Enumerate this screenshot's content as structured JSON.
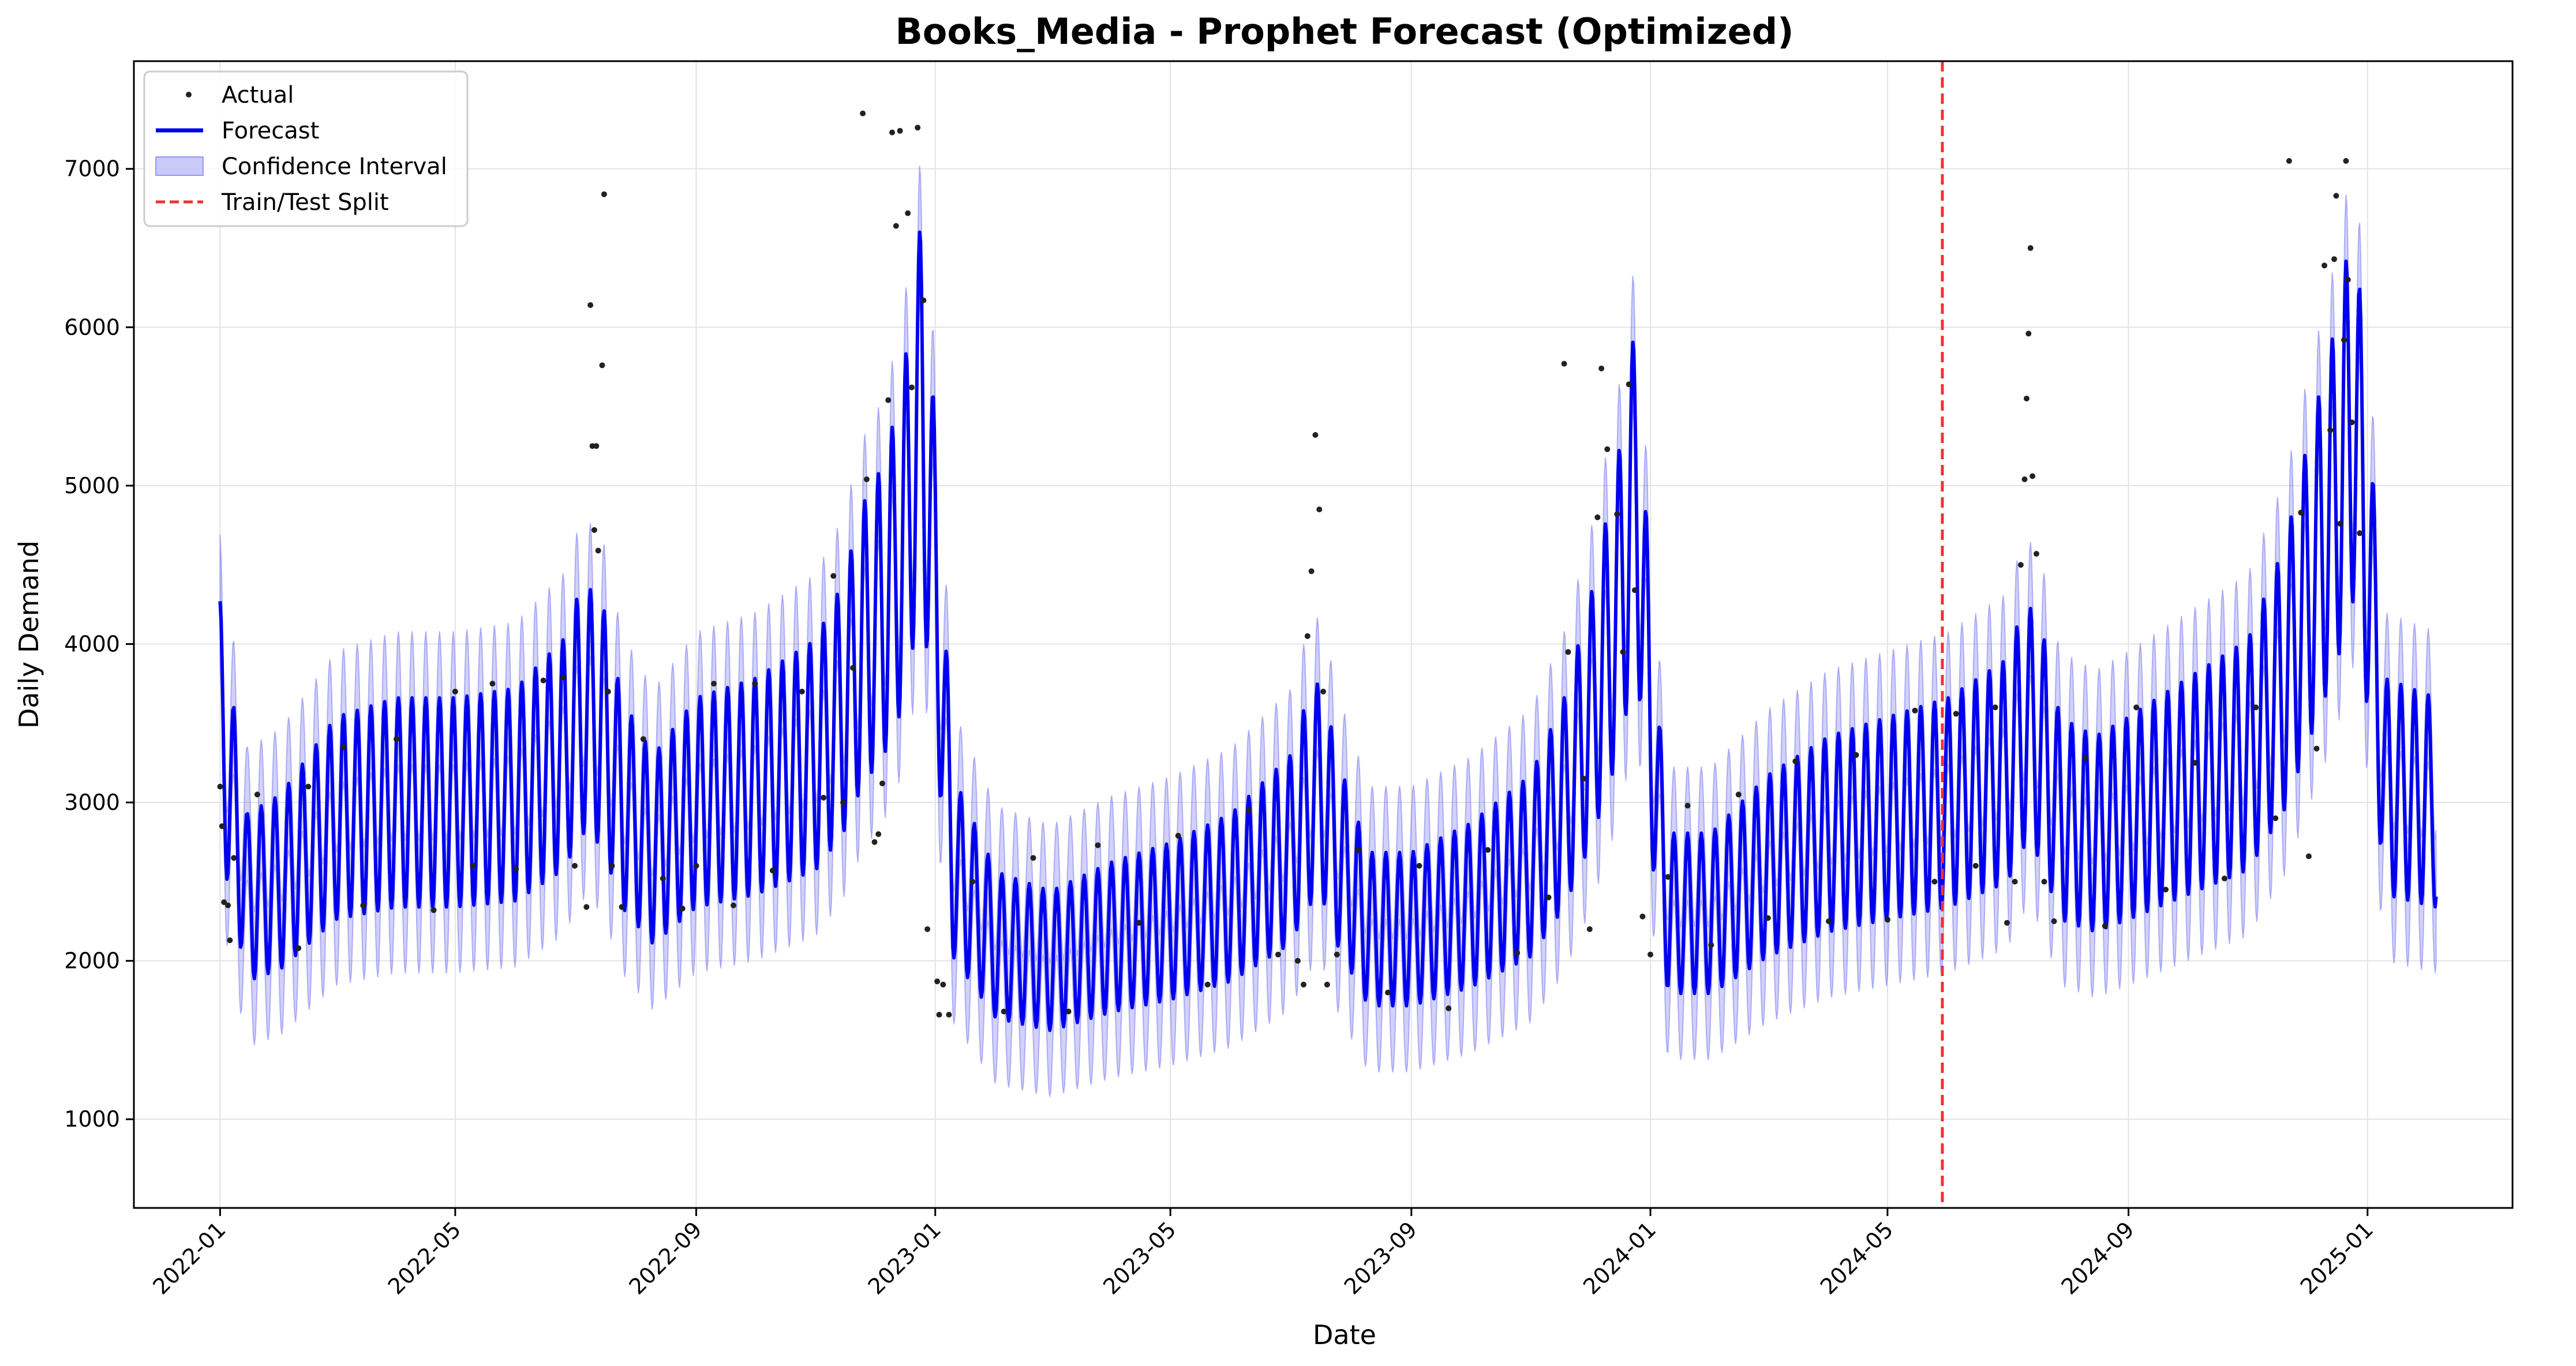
{
  "chart_data": {
    "type": "line",
    "title": "Books_Media - Prophet Forecast (Optimized)",
    "xlabel": "Date",
    "ylabel": "Daily Demand",
    "xlim": [
      "2021-11-18",
      "2025-03-16"
    ],
    "ylim": [
      440,
      7680
    ],
    "x_ticks": [
      "2022-01",
      "2022-05",
      "2022-09",
      "2023-01",
      "2023-05",
      "2023-09",
      "2024-01",
      "2024-05",
      "2024-09",
      "2025-01"
    ],
    "y_ticks": [
      1000,
      2000,
      3000,
      4000,
      5000,
      6000,
      7000
    ],
    "grid": true,
    "legend_position": "top-left",
    "legend": [
      "Actual",
      "Forecast",
      "Confidence Interval",
      "Train/Test Split"
    ],
    "split_date": "2024-05-29",
    "colors": {
      "actual": "#222222",
      "forecast": "#0000ee",
      "band": "#6666ee",
      "split": "#ee3333"
    },
    "series": [
      {
        "name": "Forecast",
        "weekly_amplitude": 0.22,
        "x": [
          "2022-01-01",
          "2022-01-15",
          "2022-02-01",
          "2022-03-01",
          "2022-04-01",
          "2022-05-01",
          "2022-06-01",
          "2022-06-25",
          "2022-07-05",
          "2022-07-15",
          "2022-07-25",
          "2022-08-10",
          "2022-09-01",
          "2022-10-01",
          "2022-11-01",
          "2022-11-15",
          "2022-11-25",
          "2022-12-05",
          "2022-12-15",
          "2022-12-25",
          "2023-01-01",
          "2023-01-10",
          "2023-02-01",
          "2023-03-01",
          "2023-04-01",
          "2023-05-01",
          "2023-06-01",
          "2023-07-01",
          "2023-07-10",
          "2023-07-17",
          "2023-07-25",
          "2023-08-10",
          "2023-09-01",
          "2023-10-01",
          "2023-11-01",
          "2023-11-18",
          "2023-12-01",
          "2023-12-15",
          "2023-12-25",
          "2024-01-01",
          "2024-01-10",
          "2024-02-01",
          "2024-03-01",
          "2024-04-01",
          "2024-05-01",
          "2024-06-01",
          "2024-07-01",
          "2024-07-10",
          "2024-07-18",
          "2024-07-28",
          "2024-08-15",
          "2024-09-01",
          "2024-10-01",
          "2024-11-01",
          "2024-11-20",
          "2024-12-01",
          "2024-12-15",
          "2024-12-25",
          "2025-01-01",
          "2025-01-10",
          "2025-02-05"
        ],
        "values": [
          3500,
          2400,
          2500,
          2900,
          3000,
          3000,
          3050,
          3300,
          3600,
          3500,
          3000,
          2700,
          3000,
          3100,
          3300,
          3600,
          4000,
          4200,
          4600,
          5500,
          4400,
          2600,
          2100,
          2000,
          2150,
          2250,
          2400,
          2700,
          3000,
          3100,
          2700,
          2200,
          2200,
          2350,
          2600,
          3000,
          3500,
          4200,
          5000,
          3500,
          2300,
          2300,
          2600,
          2800,
          2900,
          3000,
          3200,
          3500,
          3400,
          2900,
          2800,
          2900,
          3100,
          3300,
          3800,
          4300,
          4900,
          5500,
          4600,
          3100,
          3000
        ]
      },
      {
        "name": "Confidence Interval",
        "half_width": 420
      },
      {
        "name": "Actual",
        "points": [
          [
            "2022-01-01",
            3100
          ],
          [
            "2022-01-02",
            2850
          ],
          [
            "2022-01-03",
            2370
          ],
          [
            "2022-01-05",
            2350
          ],
          [
            "2022-01-06",
            2130
          ],
          [
            "2022-01-08",
            2650
          ],
          [
            "2022-01-20",
            3050
          ],
          [
            "2022-02-10",
            2080
          ],
          [
            "2022-02-15",
            3100
          ],
          [
            "2022-03-05",
            3350
          ],
          [
            "2022-03-15",
            2350
          ],
          [
            "2022-04-01",
            3400
          ],
          [
            "2022-04-20",
            2320
          ],
          [
            "2022-05-01",
            3700
          ],
          [
            "2022-05-10",
            2600
          ],
          [
            "2022-05-20",
            3750
          ],
          [
            "2022-06-01",
            2580
          ],
          [
            "2022-06-15",
            3770
          ],
          [
            "2022-06-25",
            3790
          ],
          [
            "2022-07-01",
            2600
          ],
          [
            "2022-07-07",
            2340
          ],
          [
            "2022-07-09",
            6140
          ],
          [
            "2022-07-10",
            5250
          ],
          [
            "2022-07-11",
            4720
          ],
          [
            "2022-07-12",
            5250
          ],
          [
            "2022-07-13",
            4590
          ],
          [
            "2022-07-15",
            5760
          ],
          [
            "2022-07-16",
            6840
          ],
          [
            "2022-07-18",
            3700
          ],
          [
            "2022-07-20",
            2600
          ],
          [
            "2022-07-25",
            2340
          ],
          [
            "2022-08-05",
            3400
          ],
          [
            "2022-08-15",
            2520
          ],
          [
            "2022-08-25",
            2330
          ],
          [
            "2022-09-01",
            2600
          ],
          [
            "2022-09-10",
            3750
          ],
          [
            "2022-09-20",
            2350
          ],
          [
            "2022-10-01",
            3750
          ],
          [
            "2022-10-10",
            2570
          ],
          [
            "2022-10-25",
            3700
          ],
          [
            "2022-11-05",
            3030
          ],
          [
            "2022-11-10",
            4430
          ],
          [
            "2022-11-15",
            3000
          ],
          [
            "2022-11-20",
            3850
          ],
          [
            "2022-11-25",
            7350
          ],
          [
            "2022-11-27",
            5040
          ],
          [
            "2022-12-01",
            2750
          ],
          [
            "2022-12-03",
            2800
          ],
          [
            "2022-12-05",
            3120
          ],
          [
            "2022-12-08",
            5540
          ],
          [
            "2022-12-10",
            7230
          ],
          [
            "2022-12-12",
            6640
          ],
          [
            "2022-12-14",
            7240
          ],
          [
            "2022-12-18",
            6720
          ],
          [
            "2022-12-20",
            5620
          ],
          [
            "2022-12-23",
            7260
          ],
          [
            "2022-12-26",
            6170
          ],
          [
            "2022-12-28",
            2200
          ],
          [
            "2023-01-02",
            1870
          ],
          [
            "2023-01-03",
            1660
          ],
          [
            "2023-01-05",
            1850
          ],
          [
            "2023-01-08",
            1660
          ],
          [
            "2023-01-20",
            2500
          ],
          [
            "2023-02-05",
            1680
          ],
          [
            "2023-02-20",
            2650
          ],
          [
            "2023-03-10",
            1680
          ],
          [
            "2023-03-25",
            2730
          ],
          [
            "2023-04-15",
            2240
          ],
          [
            "2023-05-05",
            2790
          ],
          [
            "2023-05-20",
            1850
          ],
          [
            "2023-06-10",
            2950
          ],
          [
            "2023-06-25",
            2040
          ],
          [
            "2023-07-05",
            2000
          ],
          [
            "2023-07-08",
            1850
          ],
          [
            "2023-07-10",
            4050
          ],
          [
            "2023-07-12",
            4460
          ],
          [
            "2023-07-14",
            5320
          ],
          [
            "2023-07-16",
            4850
          ],
          [
            "2023-07-18",
            3700
          ],
          [
            "2023-07-20",
            1850
          ],
          [
            "2023-07-25",
            2040
          ],
          [
            "2023-08-05",
            2700
          ],
          [
            "2023-08-20",
            1800
          ],
          [
            "2023-09-05",
            2600
          ],
          [
            "2023-09-20",
            1700
          ],
          [
            "2023-10-10",
            2700
          ],
          [
            "2023-10-25",
            2050
          ],
          [
            "2023-11-10",
            2400
          ],
          [
            "2023-11-18",
            5770
          ],
          [
            "2023-11-20",
            3950
          ],
          [
            "2023-11-28",
            3150
          ],
          [
            "2023-12-01",
            2200
          ],
          [
            "2023-12-05",
            4800
          ],
          [
            "2023-12-07",
            5740
          ],
          [
            "2023-12-10",
            5230
          ],
          [
            "2023-12-15",
            4820
          ],
          [
            "2023-12-18",
            3950
          ],
          [
            "2023-12-21",
            5640
          ],
          [
            "2023-12-24",
            4340
          ],
          [
            "2023-12-28",
            2280
          ],
          [
            "2024-01-01",
            2040
          ],
          [
            "2024-01-10",
            2530
          ],
          [
            "2024-01-20",
            2980
          ],
          [
            "2024-02-01",
            2100
          ],
          [
            "2024-02-15",
            3050
          ],
          [
            "2024-03-01",
            2270
          ],
          [
            "2024-03-15",
            3260
          ],
          [
            "2024-04-01",
            2250
          ],
          [
            "2024-04-15",
            3300
          ],
          [
            "2024-05-01",
            2260
          ],
          [
            "2024-05-15",
            3580
          ],
          [
            "2024-05-25",
            2500
          ],
          [
            "2024-06-05",
            3560
          ],
          [
            "2024-06-15",
            2600
          ],
          [
            "2024-06-25",
            3600
          ],
          [
            "2024-07-01",
            2240
          ],
          [
            "2024-07-05",
            2500
          ],
          [
            "2024-07-08",
            4500
          ],
          [
            "2024-07-10",
            5040
          ],
          [
            "2024-07-11",
            5550
          ],
          [
            "2024-07-12",
            5960
          ],
          [
            "2024-07-13",
            6500
          ],
          [
            "2024-07-14",
            5060
          ],
          [
            "2024-07-16",
            4570
          ],
          [
            "2024-07-20",
            2500
          ],
          [
            "2024-07-25",
            2250
          ],
          [
            "2024-08-10",
            3280
          ],
          [
            "2024-08-20",
            2220
          ],
          [
            "2024-09-05",
            3600
          ],
          [
            "2024-09-20",
            2450
          ],
          [
            "2024-10-05",
            3250
          ],
          [
            "2024-10-20",
            2520
          ],
          [
            "2024-11-05",
            3600
          ],
          [
            "2024-11-15",
            2900
          ],
          [
            "2024-11-22",
            7050
          ],
          [
            "2024-11-28",
            4830
          ],
          [
            "2024-12-02",
            2660
          ],
          [
            "2024-12-06",
            3340
          ],
          [
            "2024-12-10",
            6390
          ],
          [
            "2024-12-13",
            5350
          ],
          [
            "2024-12-15",
            6430
          ],
          [
            "2024-12-16",
            6830
          ],
          [
            "2024-12-18",
            4760
          ],
          [
            "2024-12-20",
            5920
          ],
          [
            "2024-12-21",
            7050
          ],
          [
            "2024-12-22",
            6300
          ],
          [
            "2024-12-24",
            5400
          ],
          [
            "2024-12-28",
            4700
          ]
        ]
      }
    ]
  }
}
